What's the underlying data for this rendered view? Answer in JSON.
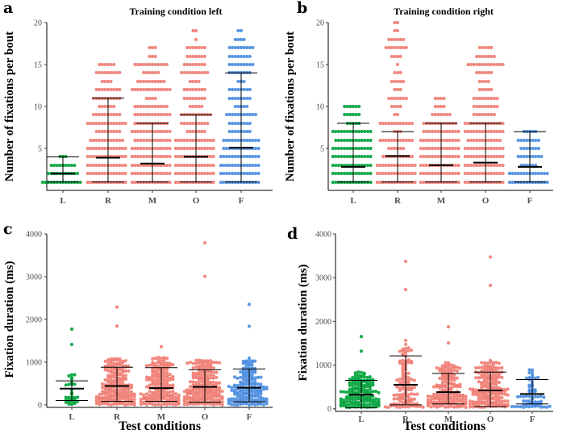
{
  "colors": {
    "L": "#00a23a",
    "R": "#f07c72",
    "M": "#f07c72",
    "O": "#f07c72",
    "F": "#4a8ce0"
  },
  "chart_data": [
    {
      "panel": "a",
      "type": "scatter",
      "title": "Training condition left",
      "xlabel": "",
      "ylabel": "Number of fixations per bout",
      "categories": [
        "L",
        "R",
        "M",
        "O",
        "F"
      ],
      "yticks": [
        "5",
        "10",
        "15",
        "20"
      ],
      "ytick_values": [
        5,
        10,
        15,
        20
      ],
      "ylim": [
        0,
        20
      ],
      "series": [
        {
          "name": "L",
          "mean": 2.0,
          "upper": 4.0,
          "lower": 1.0,
          "max": 4,
          "n": 45
        },
        {
          "name": "R",
          "mean": 3.9,
          "upper": 11.0,
          "lower": 1.0,
          "max": 15,
          "n": 330
        },
        {
          "name": "M",
          "mean": 3.2,
          "upper": 8.0,
          "lower": 1.0,
          "max": 17,
          "n": 330
        },
        {
          "name": "O",
          "mean": 4.0,
          "upper": 9.0,
          "lower": 1.0,
          "max": 19,
          "n": 340
        },
        {
          "name": "F",
          "mean": 5.1,
          "upper": 14.0,
          "lower": 1.0,
          "max": 19,
          "n": 300
        }
      ]
    },
    {
      "panel": "b",
      "type": "scatter",
      "title": "Training condition right",
      "xlabel": "",
      "ylabel": "Number of fixations per bout",
      "categories": [
        "L",
        "R",
        "M",
        "O",
        "F"
      ],
      "yticks": [
        "5",
        "10",
        "15",
        "20"
      ],
      "ytick_values": [
        5,
        10,
        15,
        20
      ],
      "ylim": [
        0,
        20
      ],
      "series": [
        {
          "name": "L",
          "mean": 2.8,
          "upper": 8.0,
          "lower": 1.0,
          "max": 10,
          "n": 240
        },
        {
          "name": "R",
          "mean": 4.1,
          "upper": 7.0,
          "lower": 1.0,
          "max": 20,
          "n": 200
        },
        {
          "name": "M",
          "mean": 3.0,
          "upper": 8.0,
          "lower": 1.0,
          "max": 11,
          "n": 240
        },
        {
          "name": "O",
          "mean": 3.3,
          "upper": 8.0,
          "lower": 1.0,
          "max": 17,
          "n": 280
        },
        {
          "name": "F",
          "mean": 2.8,
          "upper": 7.0,
          "lower": 1.0,
          "max": 7,
          "n": 90
        }
      ]
    },
    {
      "panel": "c",
      "type": "scatter",
      "title": "",
      "xlabel": "Test conditions",
      "ylabel": "Fixation duration (ms)",
      "categories": [
        "L",
        "R",
        "M",
        "O",
        "F"
      ],
      "yticks": [
        "0",
        "1000",
        "2000",
        "3000",
        "4000"
      ],
      "ytick_values": [
        0,
        1000,
        2000,
        3000,
        4000
      ],
      "ylim": [
        -60,
        4000
      ],
      "series": [
        {
          "name": "L",
          "mean": 380,
          "upper": 560,
          "lower": 100,
          "max": 1800,
          "n": 30
        },
        {
          "name": "R",
          "mean": 440,
          "upper": 880,
          "lower": 80,
          "max": 2270,
          "n": 240
        },
        {
          "name": "M",
          "mean": 390,
          "upper": 870,
          "lower": 80,
          "max": 1380,
          "n": 240
        },
        {
          "name": "O",
          "mean": 420,
          "upper": 820,
          "lower": 60,
          "max": 3800,
          "n": 260
        },
        {
          "name": "F",
          "mean": 400,
          "upper": 840,
          "lower": 70,
          "max": 2310,
          "n": 220
        }
      ]
    },
    {
      "panel": "d",
      "type": "scatter",
      "title": "",
      "xlabel": "Test conditions",
      "ylabel": "Fixation duration (ms)",
      "categories": [
        "L",
        "R",
        "M",
        "O",
        "F"
      ],
      "yticks": [
        "0",
        "1000",
        "2000",
        "3000",
        "4000"
      ],
      "ytick_values": [
        0,
        1000,
        2000,
        3000,
        4000
      ],
      "ylim": [
        -60,
        4000
      ],
      "series": [
        {
          "name": "L",
          "mean": 320,
          "upper": 650,
          "lower": 20,
          "max": 1650,
          "n": 230
        },
        {
          "name": "R",
          "mean": 550,
          "upper": 1210,
          "lower": 90,
          "max": 3400,
          "n": 130
        },
        {
          "name": "M",
          "mean": 380,
          "upper": 810,
          "lower": 110,
          "max": 1880,
          "n": 220
        },
        {
          "name": "O",
          "mean": 420,
          "upper": 840,
          "lower": 50,
          "max": 3500,
          "n": 260
        },
        {
          "name": "F",
          "mean": 340,
          "upper": 670,
          "lower": 110,
          "max": 900,
          "n": 60
        }
      ]
    }
  ]
}
